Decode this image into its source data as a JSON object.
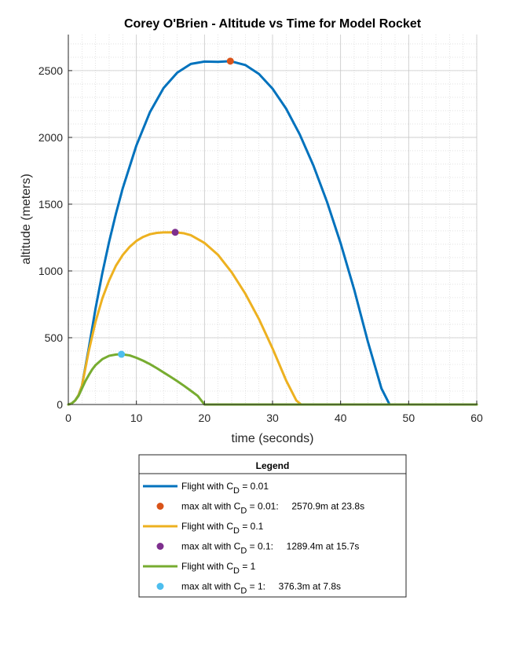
{
  "chart_data": {
    "type": "line",
    "title": "Corey O'Brien - Altitude vs Time for Model Rocket",
    "xlabel": "time (seconds)",
    "ylabel": "altitude (meters)",
    "xlim": [
      0,
      60
    ],
    "ylim": [
      0,
      2770
    ],
    "x_ticks": [
      0,
      10,
      20,
      30,
      40,
      50,
      60
    ],
    "y_ticks": [
      0,
      500,
      1000,
      1500,
      2000,
      2500
    ],
    "grid": true,
    "minor_grid": true,
    "legend_placement": "below-plot",
    "legend_title": "Legend",
    "series": [
      {
        "name": "Flight with C_D = 0.01",
        "label_main": "Flight with C",
        "label_sub": "D",
        "label_tail": " = 0.01",
        "color": "#0072BD",
        "x": [
          0,
          0.5,
          1,
          1.5,
          2,
          3,
          4,
          5,
          6,
          7,
          8,
          10,
          12,
          14,
          16,
          18,
          20,
          22,
          23.8,
          26,
          28,
          30,
          32,
          34,
          36,
          38,
          40,
          42,
          44,
          46,
          47.2,
          50,
          55,
          60
        ],
        "y": [
          0,
          8,
          30,
          70,
          140,
          420,
          720,
          985,
          1220,
          1430,
          1620,
          1940,
          2190,
          2370,
          2485,
          2550,
          2568,
          2566,
          2570.9,
          2542,
          2475,
          2365,
          2215,
          2022,
          1790,
          1518,
          1208,
          860,
          472,
          120,
          0,
          0,
          0,
          0
        ]
      },
      {
        "name": "max alt with C_D = 0.01",
        "label_main": "max alt with C",
        "label_sub": "D",
        "label_tail": " = 0.01:     2570.9m at 23.8s",
        "color": "#D95319",
        "marker": true,
        "x": [
          23.8
        ],
        "y": [
          2570.9
        ]
      },
      {
        "name": "Flight with C_D = 0.1",
        "label_main": "Flight with C",
        "label_sub": "D",
        "label_tail": " = 0.1",
        "color": "#EDB120",
        "x": [
          0,
          0.5,
          1,
          1.5,
          2,
          3,
          4,
          5,
          6,
          7,
          8,
          9,
          10,
          11,
          12,
          13,
          14,
          15.7,
          17,
          18,
          20,
          22,
          24,
          26,
          28,
          30,
          32,
          33.5,
          34.2,
          40,
          50,
          60
        ],
        "y": [
          0,
          8,
          30,
          70,
          140,
          400,
          620,
          795,
          930,
          1040,
          1120,
          1180,
          1225,
          1255,
          1275,
          1285,
          1289,
          1289.4,
          1282,
          1268,
          1210,
          1120,
          990,
          830,
          640,
          420,
          180,
          30,
          0,
          0,
          0,
          0
        ]
      },
      {
        "name": "max alt with C_D = 0.1",
        "label_main": "max alt with C",
        "label_sub": "D",
        "label_tail": " = 0.1:     1289.4m at 15.7s",
        "color": "#7E2F8E",
        "marker": true,
        "x": [
          15.7
        ],
        "y": [
          1289.4
        ]
      },
      {
        "name": "Flight with C_D = 1",
        "label_main": "Flight with C",
        "label_sub": "D",
        "label_tail": " = 1",
        "color": "#77AC30",
        "x": [
          0,
          0.5,
          1,
          1.5,
          2,
          2.5,
          3,
          3.5,
          4,
          5,
          6,
          7,
          7.8,
          9,
          10,
          11,
          12,
          13,
          14,
          15,
          16,
          17,
          18,
          19,
          20,
          25,
          30,
          40,
          50,
          60
        ],
        "y": [
          0,
          8,
          30,
          65,
          120,
          175,
          220,
          262,
          295,
          340,
          365,
          374,
          376.3,
          368,
          350,
          328,
          302,
          272,
          240,
          208,
          175,
          140,
          103,
          65,
          0,
          0,
          0,
          0,
          0,
          0
        ]
      },
      {
        "name": "max alt with C_D = 1",
        "label_main": "max alt with C",
        "label_sub": "D",
        "label_tail": " = 1:     376.3m at 7.8s",
        "color": "#4DBEEE",
        "marker": true,
        "x": [
          7.8
        ],
        "y": [
          376.3
        ]
      }
    ]
  }
}
